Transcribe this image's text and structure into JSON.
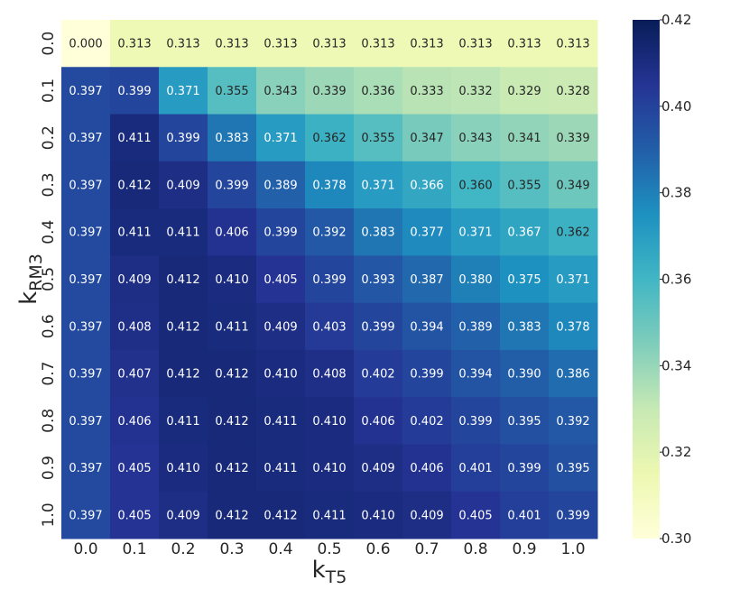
{
  "chart_data": {
    "type": "heatmap",
    "xlabel": "k",
    "xlabel_sub": "T5",
    "ylabel": "k",
    "ylabel_sub": "RM3",
    "x_categories": [
      "0.0",
      "0.1",
      "0.2",
      "0.3",
      "0.4",
      "0.5",
      "0.6",
      "0.7",
      "0.8",
      "0.9",
      "1.0"
    ],
    "y_categories": [
      "0.0",
      "0.1",
      "0.2",
      "0.3",
      "0.4",
      "0.5",
      "0.6",
      "0.7",
      "0.8",
      "0.9",
      "1.0"
    ],
    "values": [
      [
        0.0,
        0.313,
        0.313,
        0.313,
        0.313,
        0.313,
        0.313,
        0.313,
        0.313,
        0.313,
        0.313
      ],
      [
        0.397,
        0.399,
        0.371,
        0.355,
        0.343,
        0.339,
        0.336,
        0.333,
        0.332,
        0.329,
        0.328
      ],
      [
        0.397,
        0.411,
        0.399,
        0.383,
        0.371,
        0.362,
        0.355,
        0.347,
        0.343,
        0.341,
        0.339
      ],
      [
        0.397,
        0.412,
        0.409,
        0.399,
        0.389,
        0.378,
        0.371,
        0.366,
        0.36,
        0.355,
        0.349
      ],
      [
        0.397,
        0.411,
        0.411,
        0.406,
        0.399,
        0.392,
        0.383,
        0.377,
        0.371,
        0.367,
        0.362
      ],
      [
        0.397,
        0.409,
        0.412,
        0.41,
        0.405,
        0.399,
        0.393,
        0.387,
        0.38,
        0.375,
        0.371
      ],
      [
        0.397,
        0.408,
        0.412,
        0.411,
        0.409,
        0.403,
        0.399,
        0.394,
        0.389,
        0.383,
        0.378
      ],
      [
        0.397,
        0.407,
        0.412,
        0.412,
        0.41,
        0.408,
        0.402,
        0.399,
        0.394,
        0.39,
        0.386
      ],
      [
        0.397,
        0.406,
        0.411,
        0.412,
        0.411,
        0.41,
        0.406,
        0.402,
        0.399,
        0.395,
        0.392
      ],
      [
        0.397,
        0.405,
        0.41,
        0.412,
        0.411,
        0.41,
        0.409,
        0.406,
        0.401,
        0.399,
        0.395
      ],
      [
        0.397,
        0.405,
        0.409,
        0.412,
        0.412,
        0.411,
        0.41,
        0.409,
        0.405,
        0.401,
        0.399
      ]
    ],
    "value_format_decimals": 3,
    "color_range": [
      0.3,
      0.42
    ],
    "colormap": "YlGnBu",
    "colorbar_ticks": [
      "0.42",
      "0.40",
      "0.38",
      "0.36",
      "0.34",
      "0.32",
      "0.30"
    ],
    "grid": false,
    "legend": "colorbar-right"
  }
}
